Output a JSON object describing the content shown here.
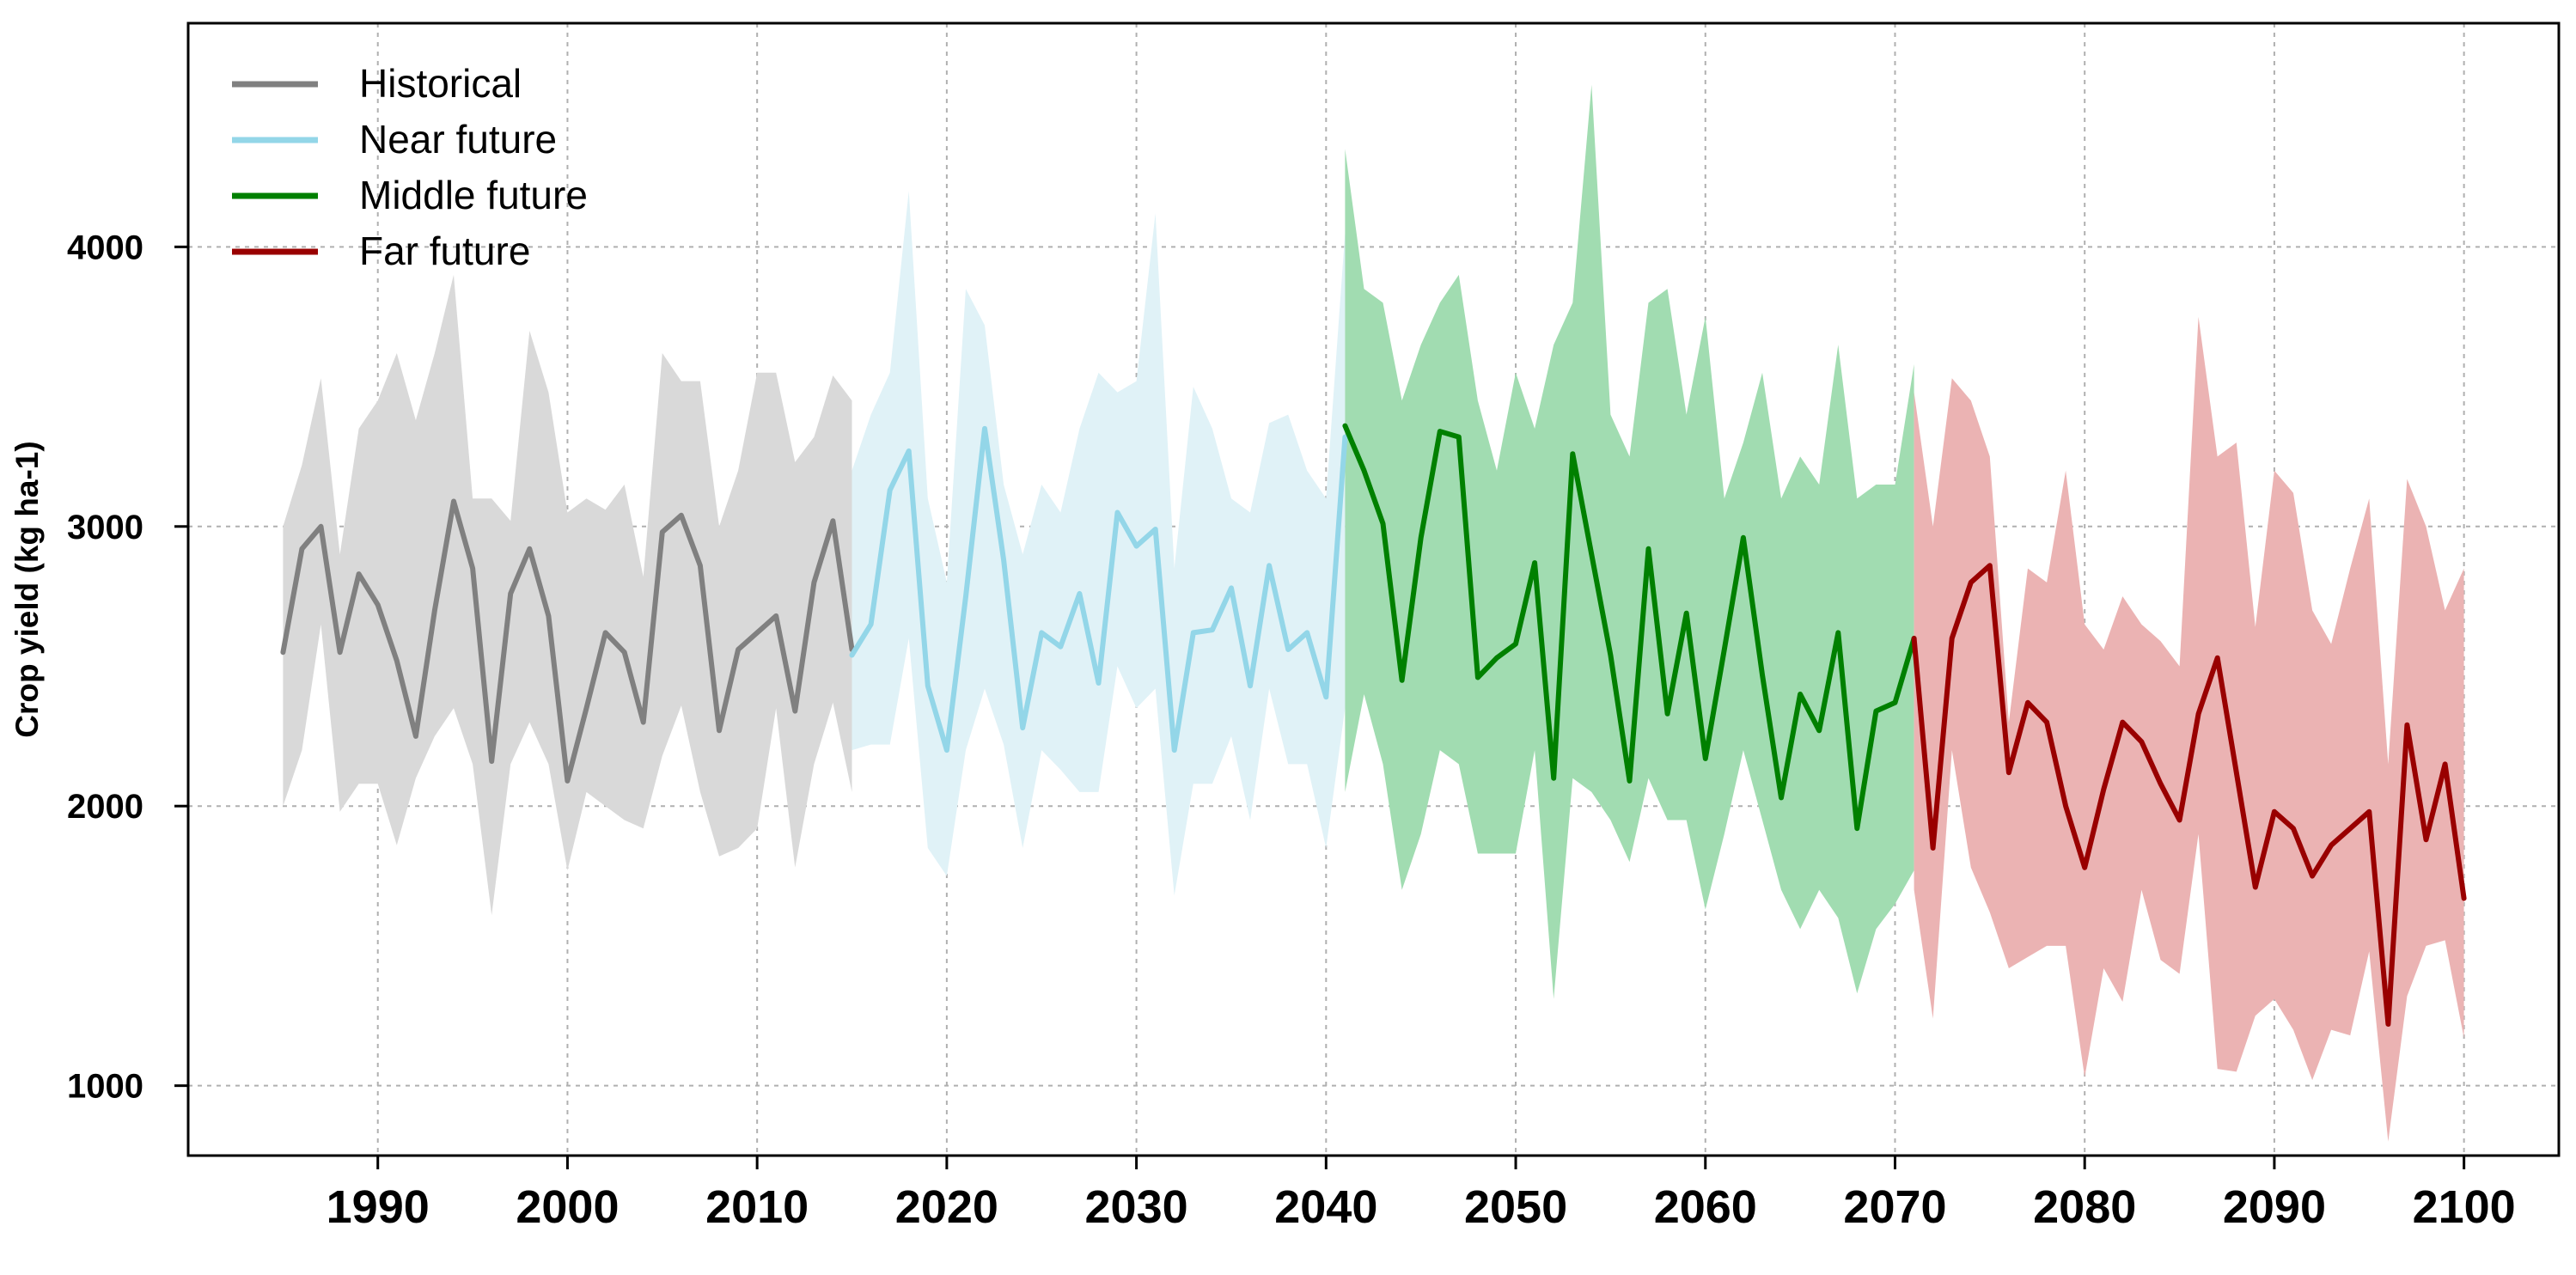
{
  "chart_data": {
    "type": "area",
    "title": "",
    "xlabel": "",
    "ylabel": "Crop yield (kg ha-1)",
    "xlim": [
      1980,
      2105
    ],
    "ylim": [
      750,
      4800
    ],
    "x_ticks": [
      1990,
      2000,
      2010,
      2020,
      2030,
      2040,
      2050,
      2060,
      2070,
      2080,
      2090,
      2100
    ],
    "y_ticks": [
      1000,
      2000,
      3000,
      4000
    ],
    "grid": true,
    "legend_position": "top-left",
    "series": [
      {
        "name": "Historical",
        "color": "#808080",
        "band_color": "#d9d9d9",
        "x": [
          1985,
          1986,
          1987,
          1988,
          1989,
          1990,
          1991,
          1992,
          1993,
          1994,
          1995,
          1996,
          1997,
          1998,
          1999,
          2000,
          2001,
          2002,
          2003,
          2004,
          2005,
          2006,
          2007,
          2008,
          2009,
          2010,
          2011,
          2012,
          2013,
          2014,
          2015
        ],
        "y": [
          2550,
          2920,
          3000,
          2550,
          2830,
          2720,
          2520,
          2250,
          2700,
          3090,
          2850,
          2160,
          2760,
          2920,
          2680,
          2090,
          2350,
          2620,
          2550,
          2300,
          2980,
          3040,
          2860,
          2270,
          2560,
          2620,
          2680,
          2340,
          2800,
          3020,
          2560
        ],
        "upper": [
          3000,
          3220,
          3530,
          2900,
          3350,
          3450,
          3620,
          3380,
          3620,
          3900,
          3100,
          3100,
          3020,
          3700,
          3480,
          3050,
          3100,
          3060,
          3150,
          2820,
          3620,
          3520,
          3520,
          3000,
          3200,
          3550,
          3550,
          3230,
          3320,
          3540,
          3450
        ],
        "lower": [
          2000,
          2200,
          2650,
          1980,
          2080,
          2080,
          1860,
          2100,
          2250,
          2350,
          2150,
          1610,
          2150,
          2300,
          2150,
          1770,
          2050,
          2000,
          1950,
          1920,
          2180,
          2360,
          2050,
          1820,
          1850,
          1920,
          2350,
          1780,
          2150,
          2370,
          2050
        ]
      },
      {
        "name": "Near future",
        "color": "#93d6e8",
        "band_color": "#e0f2f7",
        "x": [
          2015,
          2016,
          2017,
          2018,
          2019,
          2020,
          2021,
          2022,
          2023,
          2024,
          2025,
          2026,
          2027,
          2028,
          2029,
          2030,
          2031,
          2032,
          2033,
          2034,
          2035,
          2036,
          2037,
          2038,
          2039,
          2040,
          2041
        ],
        "y": [
          2540,
          2650,
          3130,
          3270,
          2430,
          2200,
          2750,
          3350,
          2880,
          2280,
          2620,
          2570,
          2760,
          2440,
          3050,
          2930,
          2990,
          2200,
          2620,
          2630,
          2780,
          2430,
          2860,
          2560,
          2620,
          2390,
          3320
        ],
        "upper": [
          3200,
          3400,
          3550,
          4200,
          3100,
          2800,
          3850,
          3720,
          3150,
          2900,
          3150,
          3050,
          3350,
          3550,
          3480,
          3520,
          4120,
          2850,
          3500,
          3350,
          3100,
          3050,
          3370,
          3400,
          3200,
          3100,
          4050
        ],
        "lower": [
          2200,
          2220,
          2220,
          2600,
          1850,
          1750,
          2200,
          2420,
          2220,
          1850,
          2200,
          2130,
          2050,
          2050,
          2500,
          2350,
          2420,
          1680,
          2080,
          2080,
          2250,
          1950,
          2420,
          2150,
          2150,
          1850,
          2350
        ]
      },
      {
        "name": "Middle future",
        "color": "#008000",
        "band_color": "#a1dcb1",
        "x": [
          2041,
          2042,
          2043,
          2044,
          2045,
          2046,
          2047,
          2048,
          2049,
          2050,
          2051,
          2052,
          2053,
          2054,
          2055,
          2056,
          2057,
          2058,
          2059,
          2060,
          2061,
          2062,
          2063,
          2064,
          2065,
          2066,
          2067,
          2068,
          2069,
          2070,
          2071
        ],
        "y": [
          3360,
          3200,
          3010,
          2450,
          2960,
          3340,
          3320,
          2460,
          2530,
          2580,
          2870,
          2100,
          3260,
          2900,
          2540,
          2090,
          2920,
          2330,
          2690,
          2170,
          2560,
          2960,
          2470,
          2030,
          2400,
          2270,
          2620,
          1920,
          2340,
          2370,
          2600
        ],
        "upper": [
          4350,
          3850,
          3800,
          3450,
          3650,
          3800,
          3900,
          3450,
          3200,
          3550,
          3350,
          3650,
          3800,
          4580,
          3400,
          3250,
          3800,
          3850,
          3400,
          3750,
          3100,
          3300,
          3550,
          3100,
          3250,
          3150,
          3650,
          3100,
          3150,
          3150,
          3580
        ],
        "lower": [
          2050,
          2400,
          2150,
          1700,
          1900,
          2200,
          2150,
          1830,
          1830,
          1830,
          2200,
          1310,
          2100,
          2050,
          1950,
          1800,
          2100,
          1950,
          1950,
          1630,
          1900,
          2200,
          1950,
          1700,
          1560,
          1700,
          1600,
          1330,
          1560,
          1650,
          1770
        ]
      },
      {
        "name": "Far future",
        "color": "#990000",
        "band_color": "#ebb3b3",
        "x": [
          2071,
          2072,
          2073,
          2074,
          2075,
          2076,
          2077,
          2078,
          2079,
          2080,
          2081,
          2082,
          2083,
          2084,
          2085,
          2086,
          2087,
          2088,
          2089,
          2090,
          2091,
          2092,
          2093,
          2094,
          2095,
          2096,
          2097,
          2098,
          2099,
          2100
        ],
        "y": [
          2600,
          1850,
          2600,
          2800,
          2860,
          2120,
          2370,
          2300,
          2000,
          1780,
          2060,
          2300,
          2230,
          2080,
          1950,
          2330,
          2530,
          2120,
          1710,
          1980,
          1920,
          1750,
          1860,
          1920,
          1980,
          1220,
          2290,
          1880,
          2150,
          1670
        ],
        "upper": [
          3480,
          3000,
          3530,
          3450,
          3250,
          2300,
          2850,
          2800,
          3200,
          2650,
          2560,
          2750,
          2650,
          2590,
          2500,
          3750,
          3250,
          3300,
          2640,
          3200,
          3120,
          2700,
          2580,
          2850,
          3100,
          2150,
          3170,
          3000,
          2700,
          2850
        ],
        "lower": [
          1700,
          1240,
          2200,
          1780,
          1620,
          1420,
          1460,
          1500,
          1500,
          1030,
          1420,
          1300,
          1700,
          1450,
          1400,
          1900,
          1060,
          1050,
          1250,
          1310,
          1200,
          1020,
          1200,
          1180,
          1480,
          800,
          1320,
          1500,
          1520,
          1170
        ]
      }
    ]
  }
}
